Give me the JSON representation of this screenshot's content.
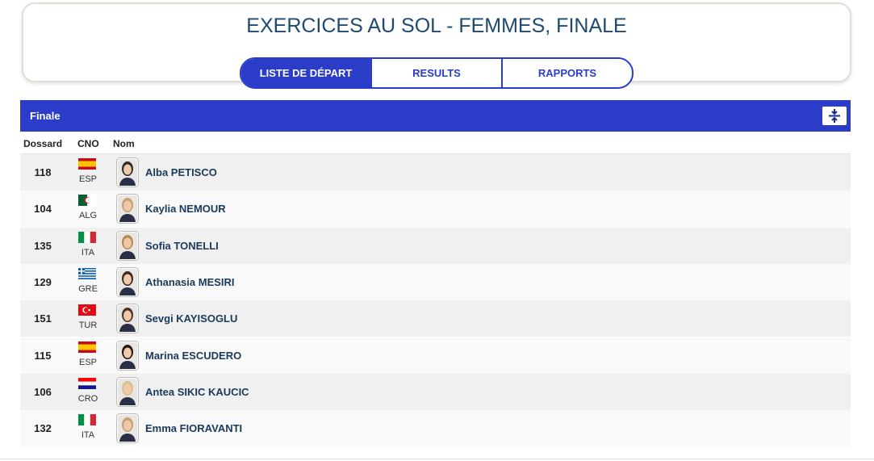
{
  "header": {
    "title": "EXERCICES AU SOL - FEMMES, FINALE",
    "tabs": [
      "LISTE DE DÉPART",
      "RESULTS",
      "RAPPORTS"
    ]
  },
  "section": {
    "title": "Finale"
  },
  "table": {
    "columns": [
      "Dossard",
      "CNO",
      "Nom"
    ],
    "rows": [
      [
        118,
        "ESP",
        "Alba PETISCO"
      ],
      [
        104,
        "ALG",
        "Kaylia NEMOUR"
      ],
      [
        135,
        "ITA",
        "Sofia TONELLI"
      ],
      [
        129,
        "GRE",
        "Athanasia MESIRI"
      ],
      [
        151,
        "TUR",
        "Sevgi KAYISOGLU"
      ],
      [
        115,
        "ESP",
        "Marina ESCUDERO"
      ],
      [
        106,
        "CRO",
        "Antea SIKIC KAUCIC"
      ],
      [
        132,
        "ITA",
        "Emma FIORAVANTI"
      ]
    ]
  }
}
